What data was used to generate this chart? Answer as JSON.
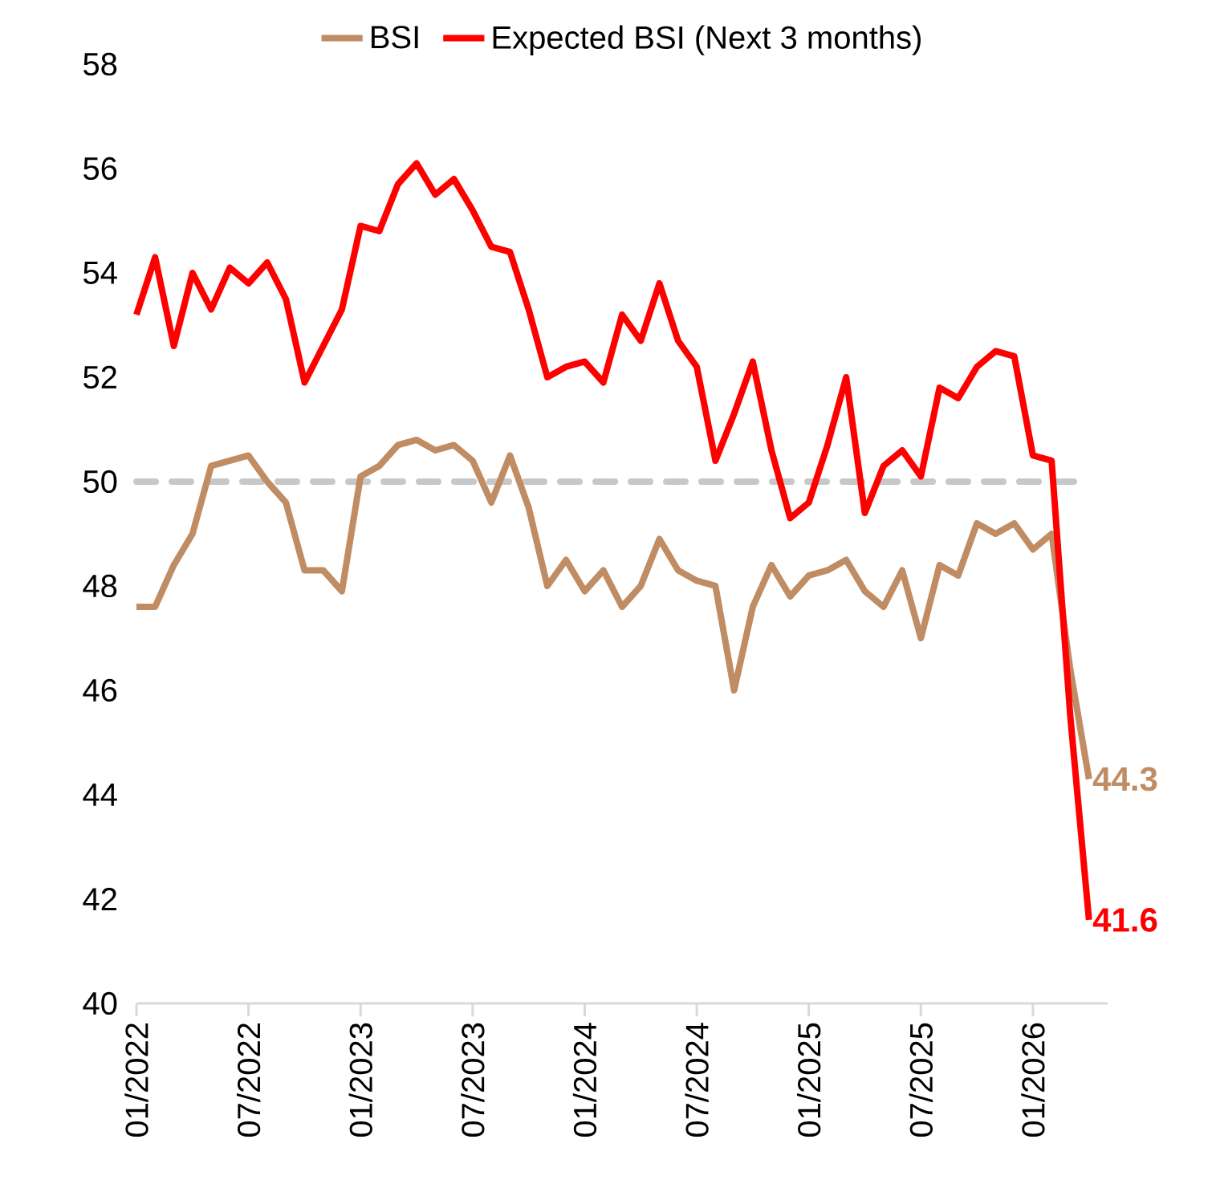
{
  "chart_data": {
    "type": "line",
    "x": [
      "2022-01",
      "2022-02",
      "2022-03",
      "2022-04",
      "2022-05",
      "2022-06",
      "2022-07",
      "2022-08",
      "2022-09",
      "2022-10",
      "2022-11",
      "2022-12",
      "2023-01",
      "2023-02",
      "2023-03",
      "2023-04",
      "2023-05",
      "2023-06",
      "2023-07",
      "2023-08",
      "2023-09",
      "2023-10",
      "2023-11",
      "2023-12",
      "2024-01",
      "2024-02",
      "2024-03",
      "2024-04",
      "2024-05",
      "2024-06",
      "2024-07",
      "2024-08",
      "2024-09",
      "2024-10",
      "2024-11",
      "2024-12",
      "2025-01",
      "2025-02",
      "2025-03",
      "2025-04",
      "2025-05",
      "2025-06",
      "2025-07",
      "2025-08",
      "2025-09",
      "2025-10",
      "2025-11",
      "2025-12",
      "2026-01",
      "2026-02",
      "2026-03",
      "2026-04"
    ],
    "series": [
      {
        "name": "BSI",
        "color": "#bf8c64",
        "values": [
          47.6,
          47.6,
          48.4,
          49.0,
          50.3,
          50.4,
          50.5,
          50.0,
          49.6,
          48.3,
          48.3,
          47.9,
          50.1,
          50.3,
          50.7,
          50.8,
          50.6,
          50.7,
          50.4,
          49.6,
          50.5,
          49.5,
          48.0,
          48.5,
          47.9,
          48.3,
          47.6,
          48.0,
          48.9,
          48.3,
          48.1,
          48.0,
          46.0,
          47.6,
          48.4,
          47.8,
          48.2,
          48.3,
          48.5,
          47.9,
          47.6,
          48.3,
          47.0,
          48.4,
          48.2,
          49.2,
          49.0,
          49.2,
          48.7,
          49.0,
          46.4,
          44.3
        ]
      },
      {
        "name": "Expected BSI (Next 3 months)",
        "color": "#ff0000",
        "values": [
          53.2,
          54.3,
          52.6,
          54.0,
          53.3,
          54.1,
          53.8,
          54.2,
          53.5,
          51.9,
          52.6,
          53.3,
          54.9,
          54.8,
          55.7,
          56.1,
          55.5,
          55.8,
          55.2,
          54.5,
          54.4,
          53.3,
          52.0,
          52.2,
          52.3,
          51.9,
          53.2,
          52.7,
          53.8,
          52.7,
          52.2,
          50.4,
          51.3,
          52.3,
          50.6,
          49.3,
          49.6,
          50.7,
          52.0,
          49.4,
          50.3,
          50.6,
          50.1,
          51.8,
          51.6,
          52.2,
          52.5,
          52.4,
          50.5,
          50.4,
          45.5,
          41.6
        ]
      }
    ],
    "xlim": [
      "2022-01",
      "2026-05"
    ],
    "xticks": [
      {
        "value": "2022-01",
        "label": "01/2022"
      },
      {
        "value": "2022-07",
        "label": "07/2022"
      },
      {
        "value": "2023-01",
        "label": "01/2023"
      },
      {
        "value": "2023-07",
        "label": "07/2023"
      },
      {
        "value": "2024-01",
        "label": "01/2024"
      },
      {
        "value": "2024-07",
        "label": "07/2024"
      },
      {
        "value": "2025-01",
        "label": "01/2025"
      },
      {
        "value": "2025-07",
        "label": "07/2025"
      },
      {
        "value": "2026-01",
        "label": "01/2026"
      }
    ],
    "ylim": [
      40,
      58
    ],
    "yticks": [
      40,
      42,
      44,
      46,
      48,
      50,
      52,
      54,
      56,
      58
    ],
    "ref_lines": [
      {
        "axis": "y",
        "value": 50,
        "color": "#c8c8c8",
        "line_style": "dashed"
      }
    ],
    "annotations": [
      {
        "text": "44.3",
        "x": "2026-04",
        "y": 44.3
      },
      {
        "text": "41.6",
        "x": "2026-04",
        "y": 41.6
      }
    ],
    "legend": "top",
    "grid": false
  }
}
